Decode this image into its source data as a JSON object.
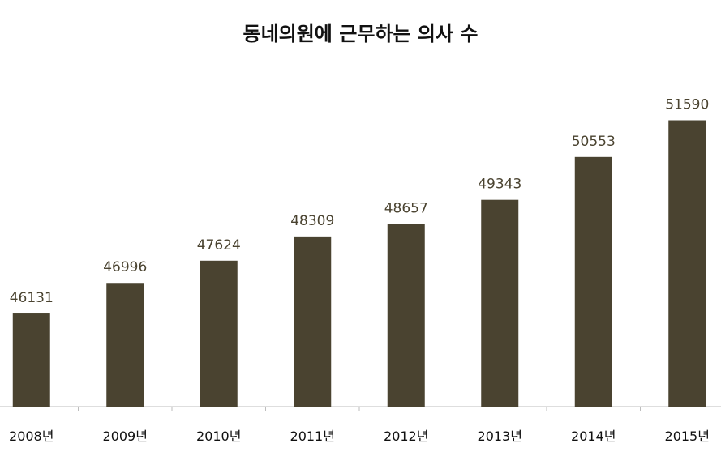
{
  "chart_data": {
    "type": "bar",
    "title": "동네의원에 근무하는 의사 수",
    "categories": [
      "2008년",
      "2009년",
      "2010년",
      "2011년",
      "2012년",
      "2013년",
      "2014년",
      "2015년"
    ],
    "values": [
      46131,
      46996,
      47624,
      48309,
      48657,
      49343,
      50553,
      51590
    ],
    "value_labels": [
      "46131",
      "46996",
      "47624",
      "48309",
      "48657",
      "49343",
      "50553",
      "51590"
    ],
    "xlabel": "",
    "ylabel": "",
    "ylim": [
      43500,
      52700
    ],
    "grid": false,
    "bar_color": "#4a4330",
    "legend": "none"
  }
}
